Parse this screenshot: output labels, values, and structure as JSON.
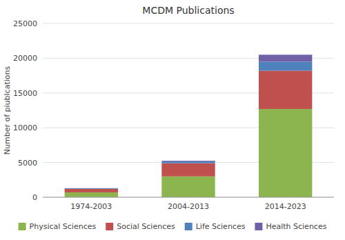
{
  "chart_data": {
    "type": "bar",
    "stacked": true,
    "title": "MCDM Publications",
    "ylabel": "Number of piublcations",
    "categories": [
      "1974-2003",
      "2004-2013",
      "2014-2023"
    ],
    "series": [
      {
        "name": "Physical Sciences",
        "color": "#8cb550",
        "values": [
          700,
          3000,
          12700
        ]
      },
      {
        "name": "Social Sciences",
        "color": "#c0504d",
        "values": [
          500,
          1900,
          5500
        ]
      },
      {
        "name": "Life Sciences",
        "color": "#4f81bd",
        "values": [
          80,
          280,
          1300
        ]
      },
      {
        "name": "Health Sciences",
        "color": "#7060a8",
        "values": [
          30,
          80,
          1000
        ]
      }
    ],
    "ylim": [
      0,
      25000
    ],
    "yticks": [
      0,
      5000,
      10000,
      15000,
      20000,
      25000
    ],
    "grid": true,
    "legend": "bottom"
  }
}
